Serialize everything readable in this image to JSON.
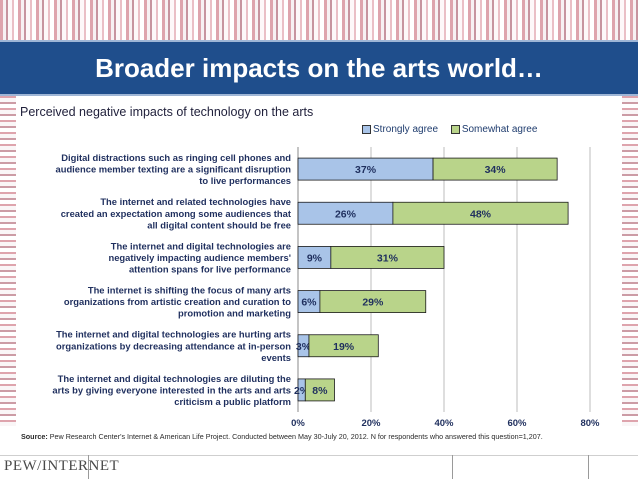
{
  "slide": {
    "title": "Broader impacts on the arts world…",
    "source_label": "Source:",
    "source_text": " Pew Research Center's Internet & American Life Project. Conducted between May 30-July 20, 2012. N for respondents who answered this question=1,207.",
    "logo": "PEW/INTERNET"
  },
  "colors": {
    "title_bar": "#1f4e8c",
    "strongly_agree": "#a9c4e8",
    "somewhat_agree": "#b9d48a"
  },
  "chart_data": {
    "type": "bar",
    "orientation": "horizontal",
    "stacked": true,
    "title": "Perceived negative impacts of technology on the arts",
    "legend_position": "top-right",
    "grid": true,
    "xlim": [
      0,
      80
    ],
    "x_ticks": [
      "0%",
      "20%",
      "40%",
      "60%",
      "80%"
    ],
    "categories": [
      [
        "Digital distractions such as ringing cell phones and",
        "audience member texting are a significant disruption",
        "to live performances"
      ],
      [
        "The internet and related technologies have",
        "created an expectation among some audiences that",
        "all digital content should be free"
      ],
      [
        "The internet and digital technologies are",
        "negatively impacting audience members'",
        "attention spans for live performance"
      ],
      [
        "The internet is shifting the focus of many arts",
        "organizations from artistic creation and curation to",
        "promotion and marketing"
      ],
      [
        "The internet and digital technologies are hurting arts",
        "organizations by decreasing attendance at in-person",
        "events"
      ],
      [
        "The internet and digital technologies are diluting the",
        "arts by giving everyone interested in the arts and arts",
        "criticism a public platform"
      ]
    ],
    "series": [
      {
        "name": "Strongly agree",
        "values": [
          37,
          26,
          9,
          6,
          3,
          2
        ],
        "labels": [
          "37%",
          "26%",
          "9%",
          "6%",
          "3%",
          "2%"
        ]
      },
      {
        "name": "Somewhat agree",
        "values": [
          34,
          48,
          31,
          29,
          19,
          8
        ],
        "labels": [
          "34%",
          "48%",
          "31%",
          "29%",
          "19%",
          "8%"
        ]
      }
    ]
  }
}
